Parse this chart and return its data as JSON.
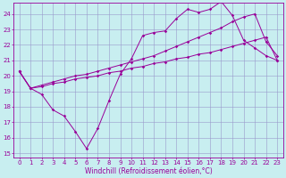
{
  "background_color": "#c8eef0",
  "grid_color": "#9999cc",
  "line_color": "#990099",
  "xlabel": "Windchill (Refroidissement éolien,°C)",
  "xlabel_fontsize": 5.5,
  "tick_fontsize": 5,
  "ylim": [
    14.7,
    24.7
  ],
  "xlim": [
    -0.5,
    23.5
  ],
  "yticks": [
    15,
    16,
    17,
    18,
    19,
    20,
    21,
    22,
    23,
    24
  ],
  "xticks": [
    0,
    1,
    2,
    3,
    4,
    5,
    6,
    7,
    8,
    9,
    10,
    11,
    12,
    13,
    14,
    15,
    16,
    17,
    18,
    19,
    20,
    21,
    22,
    23
  ],
  "series1_x": [
    0,
    1,
    2,
    3,
    4,
    5,
    6,
    7,
    8,
    9,
    10,
    11,
    12,
    13,
    14,
    15,
    16,
    17,
    18,
    19,
    20,
    21,
    22,
    23
  ],
  "series1_y": [
    20.3,
    19.2,
    18.8,
    17.8,
    17.4,
    16.4,
    15.3,
    16.6,
    18.4,
    20.1,
    21.1,
    22.6,
    22.8,
    22.9,
    23.7,
    24.3,
    24.1,
    24.3,
    24.8,
    23.9,
    22.3,
    21.8,
    21.3,
    21.0
  ],
  "series2_x": [
    0,
    1,
    2,
    3,
    4,
    5,
    6,
    7,
    8,
    9,
    10,
    11,
    12,
    13,
    14,
    15,
    16,
    17,
    18,
    19,
    20,
    21,
    22,
    23
  ],
  "series2_y": [
    20.3,
    19.2,
    19.4,
    19.6,
    19.8,
    20.0,
    20.1,
    20.3,
    20.5,
    20.7,
    20.9,
    21.1,
    21.3,
    21.6,
    21.9,
    22.2,
    22.5,
    22.8,
    23.1,
    23.5,
    23.8,
    24.0,
    22.2,
    21.3
  ],
  "series3_x": [
    0,
    1,
    2,
    3,
    4,
    5,
    6,
    7,
    8,
    9,
    10,
    11,
    12,
    13,
    14,
    15,
    16,
    17,
    18,
    19,
    20,
    21,
    22,
    23
  ],
  "series3_y": [
    20.3,
    19.2,
    19.3,
    19.5,
    19.6,
    19.8,
    19.9,
    20.0,
    20.2,
    20.3,
    20.5,
    20.6,
    20.8,
    20.9,
    21.1,
    21.2,
    21.4,
    21.5,
    21.7,
    21.9,
    22.1,
    22.3,
    22.5,
    21.0
  ]
}
